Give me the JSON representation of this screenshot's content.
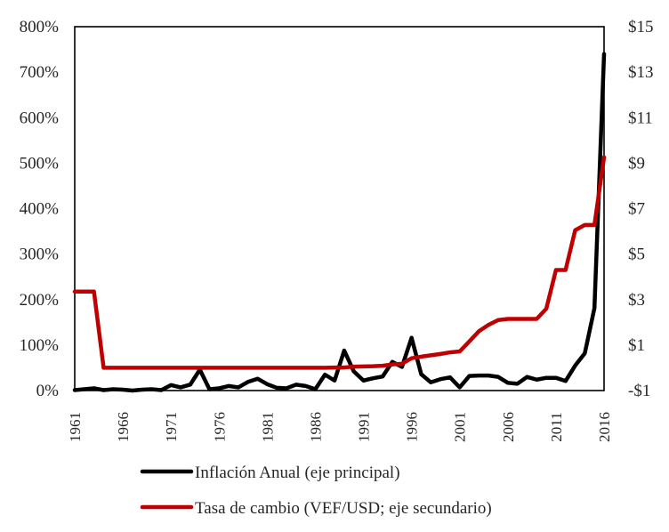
{
  "chart_data": {
    "type": "line",
    "title": "",
    "xlabel": "",
    "ylabel_left": "",
    "ylabel_right": "",
    "xlim": [
      1961,
      2016
    ],
    "x_ticks": [
      1961,
      1966,
      1971,
      1976,
      1981,
      1986,
      1991,
      1996,
      2001,
      2006,
      2011,
      2016
    ],
    "y_left": {
      "range": [
        0,
        800
      ],
      "ticks": [
        0,
        100,
        200,
        300,
        400,
        500,
        600,
        700,
        800
      ],
      "tick_labels": [
        "0%",
        "100%",
        "200%",
        "300%",
        "400%",
        "500%",
        "600%",
        "700%",
        "800%"
      ]
    },
    "y_right": {
      "range": [
        -1,
        15
      ],
      "ticks": [
        -1,
        1,
        3,
        5,
        7,
        9,
        11,
        13,
        15
      ],
      "tick_labels": [
        "-$1",
        "$1",
        "$3",
        "$5",
        "$7",
        "$9",
        "$11",
        "$13",
        "$15"
      ]
    },
    "grid": false,
    "legend_position": "bottom",
    "series": [
      {
        "name": "Inflación Anual (eje principal)",
        "axis": "left",
        "color": "#000000",
        "x": [
          1961,
          1962,
          1963,
          1964,
          1965,
          1966,
          1967,
          1968,
          1969,
          1970,
          1971,
          1972,
          1973,
          1974,
          1975,
          1976,
          1977,
          1978,
          1979,
          1980,
          1981,
          1982,
          1983,
          1984,
          1985,
          1986,
          1987,
          1988,
          1989,
          1990,
          1991,
          1992,
          1993,
          1994,
          1995,
          1996,
          1997,
          1998,
          1999,
          2000,
          2001,
          2002,
          2003,
          2004,
          2005,
          2006,
          2007,
          2008,
          2009,
          2010,
          2011,
          2012,
          2013,
          2014,
          2015,
          2016
        ],
        "values": [
          1,
          3,
          5,
          1,
          3,
          2,
          0,
          2,
          3,
          1,
          12,
          7,
          13,
          46,
          3,
          5,
          10,
          7,
          19,
          26,
          14,
          6,
          5,
          13,
          10,
          3,
          35,
          22,
          88,
          42,
          22,
          27,
          31,
          63,
          52,
          116,
          36,
          18,
          25,
          29,
          7,
          32,
          33,
          33,
          30,
          17,
          15,
          30,
          24,
          28,
          28,
          21,
          55,
          82,
          181,
          740
        ]
      },
      {
        "name": "Tasa de cambio (VEF/USD; eje secundario)",
        "axis": "right",
        "color": "#C00000",
        "x": [
          1961,
          1962,
          1963,
          1964,
          1965,
          1966,
          1967,
          1968,
          1969,
          1970,
          1971,
          1972,
          1973,
          1974,
          1975,
          1976,
          1977,
          1978,
          1979,
          1980,
          1981,
          1982,
          1983,
          1984,
          1985,
          1986,
          1987,
          1988,
          1989,
          1990,
          1991,
          1992,
          1993,
          1994,
          1995,
          1996,
          1997,
          1998,
          1999,
          2000,
          2001,
          2002,
          2003,
          2004,
          2005,
          2006,
          2007,
          2008,
          2009,
          2010,
          2011,
          2012,
          2013,
          2014,
          2015,
          2016
        ],
        "values": [
          3.35,
          3.35,
          3.35,
          0.0045,
          0.0045,
          0.0045,
          0.0045,
          0.0045,
          0.0045,
          0.0045,
          0.0045,
          0.0044,
          0.0044,
          0.0043,
          0.0043,
          0.0043,
          0.0043,
          0.0043,
          0.0043,
          0.0043,
          0.0043,
          0.0043,
          0.0043,
          0.0043,
          0.0043,
          0.0043,
          0.0043,
          0.0143,
          0.0143,
          0.05,
          0.06,
          0.07,
          0.09,
          0.15,
          0.18,
          0.42,
          0.49,
          0.55,
          0.61,
          0.68,
          0.72,
          1.16,
          1.61,
          1.89,
          2.1,
          2.15,
          2.15,
          2.15,
          2.15,
          2.6,
          4.3,
          4.3,
          6.05,
          6.28,
          6.28,
          9.26
        ]
      }
    ]
  }
}
